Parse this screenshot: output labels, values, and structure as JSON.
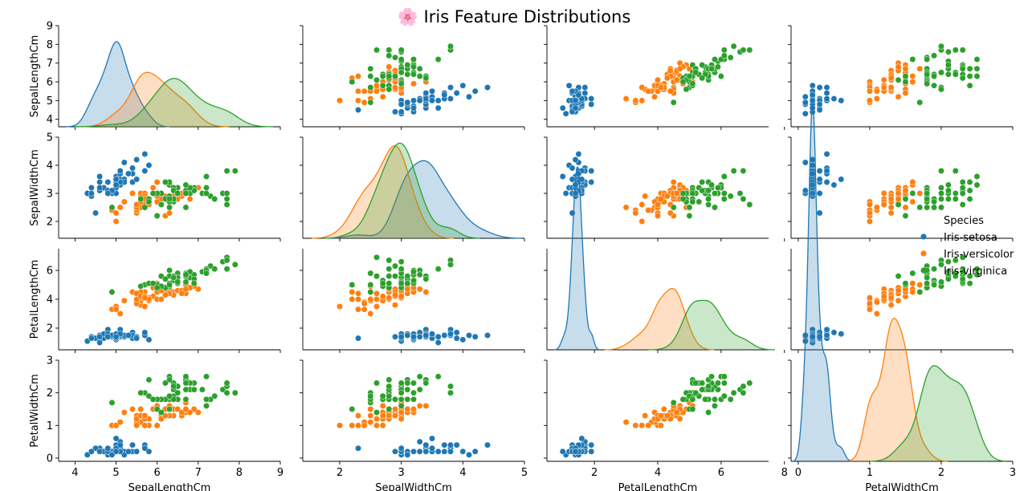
{
  "chart_data": {
    "type": "scatter",
    "title": "🌸 Iris Feature Distributions",
    "features": [
      "SepalLengthCm",
      "SepalWidthCm",
      "PetalLengthCm",
      "PetalWidthCm"
    ],
    "ranges": [
      [
        3.6,
        9.0
      ],
      [
        1.4,
        5.0
      ],
      [
        0.5,
        7.5
      ],
      [
        -0.1,
        3.0
      ]
    ],
    "ticks": [
      [
        4,
        5,
        6,
        7,
        8,
        9
      ],
      [
        2,
        3,
        4,
        5
      ],
      [
        2,
        4,
        6,
        8
      ],
      [
        0,
        1,
        2,
        3
      ]
    ],
    "diag_ylim": [
      0,
      1.3
    ],
    "legend": {
      "title": "Species",
      "placement": "center-right",
      "entries": [
        "Iris-setosa",
        "Iris-versicolor",
        "Iris-virginica"
      ]
    },
    "colors": [
      "#1f77b4",
      "#ff7f0e",
      "#2ca02c"
    ],
    "series": [
      {
        "name": "Iris-setosa",
        "SepalLengthCm": [
          5.1,
          4.9,
          4.7,
          4.6,
          5.0,
          5.4,
          4.6,
          5.0,
          4.4,
          4.9,
          5.4,
          4.8,
          4.8,
          4.3,
          5.8,
          5.7,
          5.4,
          5.1,
          5.7,
          5.1,
          5.4,
          5.1,
          4.6,
          5.1,
          4.8,
          5.0,
          5.0,
          5.2,
          5.2,
          4.7,
          4.8,
          5.4,
          5.2,
          5.5,
          4.9,
          5.0,
          5.5,
          4.9,
          4.4,
          5.1,
          5.0,
          4.5,
          4.4,
          5.0,
          5.1,
          4.8,
          5.1,
          4.6,
          5.3,
          5.0
        ],
        "SepalWidthCm": [
          3.5,
          3.0,
          3.2,
          3.1,
          3.6,
          3.9,
          3.4,
          3.4,
          2.9,
          3.1,
          3.7,
          3.4,
          3.0,
          3.0,
          4.0,
          4.4,
          3.9,
          3.5,
          3.8,
          3.8,
          3.4,
          3.7,
          3.6,
          3.3,
          3.4,
          3.0,
          3.4,
          3.5,
          3.4,
          3.2,
          3.1,
          3.4,
          4.1,
          4.2,
          3.1,
          3.2,
          3.5,
          3.1,
          3.0,
          3.4,
          3.5,
          2.3,
          3.2,
          3.5,
          3.8,
          3.0,
          3.8,
          3.2,
          3.7,
          3.3
        ],
        "PetalLengthCm": [
          1.4,
          1.4,
          1.3,
          1.5,
          1.4,
          1.7,
          1.4,
          1.5,
          1.4,
          1.5,
          1.5,
          1.6,
          1.4,
          1.1,
          1.2,
          1.5,
          1.3,
          1.4,
          1.7,
          1.5,
          1.7,
          1.5,
          1.0,
          1.7,
          1.9,
          1.6,
          1.6,
          1.5,
          1.4,
          1.6,
          1.6,
          1.5,
          1.5,
          1.4,
          1.5,
          1.2,
          1.3,
          1.5,
          1.3,
          1.5,
          1.3,
          1.3,
          1.3,
          1.6,
          1.9,
          1.4,
          1.6,
          1.4,
          1.5,
          1.4
        ],
        "PetalWidthCm": [
          0.2,
          0.2,
          0.2,
          0.2,
          0.2,
          0.4,
          0.3,
          0.2,
          0.2,
          0.1,
          0.2,
          0.2,
          0.1,
          0.1,
          0.2,
          0.4,
          0.4,
          0.3,
          0.3,
          0.3,
          0.2,
          0.4,
          0.2,
          0.5,
          0.2,
          0.2,
          0.4,
          0.2,
          0.2,
          0.2,
          0.2,
          0.4,
          0.1,
          0.2,
          0.1,
          0.2,
          0.2,
          0.1,
          0.2,
          0.2,
          0.3,
          0.3,
          0.2,
          0.6,
          0.4,
          0.3,
          0.2,
          0.2,
          0.2,
          0.2
        ]
      },
      {
        "name": "Iris-versicolor",
        "SepalLengthCm": [
          7.0,
          6.4,
          6.9,
          5.5,
          6.5,
          5.7,
          6.3,
          4.9,
          6.6,
          5.2,
          5.0,
          5.9,
          6.0,
          6.1,
          5.6,
          6.7,
          5.6,
          5.8,
          6.2,
          5.6,
          5.9,
          6.1,
          6.3,
          6.1,
          6.4,
          6.6,
          6.8,
          6.7,
          6.0,
          5.7,
          5.5,
          5.5,
          5.8,
          6.0,
          5.4,
          6.0,
          6.7,
          6.3,
          5.6,
          5.5,
          5.5,
          6.1,
          5.8,
          5.0,
          5.6,
          5.7,
          5.7,
          6.2,
          5.1,
          5.7
        ],
        "SepalWidthCm": [
          3.2,
          3.2,
          3.1,
          2.3,
          2.8,
          2.8,
          3.3,
          2.4,
          2.9,
          2.7,
          2.0,
          3.0,
          2.2,
          2.9,
          2.9,
          3.1,
          3.0,
          2.7,
          2.2,
          2.5,
          3.2,
          2.8,
          2.5,
          2.8,
          2.9,
          3.0,
          2.8,
          3.0,
          2.9,
          2.6,
          2.4,
          2.4,
          2.7,
          2.7,
          3.0,
          3.4,
          3.1,
          2.3,
          3.0,
          2.5,
          2.6,
          3.0,
          2.6,
          2.3,
          2.7,
          3.0,
          2.9,
          2.9,
          2.5,
          2.8
        ],
        "PetalLengthCm": [
          4.7,
          4.5,
          4.9,
          4.0,
          4.6,
          4.5,
          4.7,
          3.3,
          4.6,
          3.9,
          3.5,
          4.2,
          4.0,
          4.7,
          3.6,
          4.4,
          4.5,
          4.1,
          4.5,
          3.9,
          4.8,
          4.0,
          4.9,
          4.7,
          4.3,
          4.4,
          4.8,
          5.0,
          4.5,
          3.5,
          3.8,
          3.7,
          3.9,
          5.1,
          4.5,
          4.5,
          4.7,
          4.4,
          4.1,
          4.0,
          4.4,
          4.6,
          4.0,
          3.3,
          4.2,
          4.2,
          4.2,
          4.3,
          3.0,
          4.1
        ],
        "PetalWidthCm": [
          1.4,
          1.5,
          1.5,
          1.3,
          1.5,
          1.3,
          1.6,
          1.0,
          1.3,
          1.4,
          1.0,
          1.5,
          1.0,
          1.4,
          1.3,
          1.4,
          1.5,
          1.0,
          1.5,
          1.1,
          1.8,
          1.3,
          1.5,
          1.2,
          1.3,
          1.4,
          1.4,
          1.7,
          1.5,
          1.0,
          1.1,
          1.0,
          1.2,
          1.6,
          1.5,
          1.6,
          1.5,
          1.3,
          1.3,
          1.3,
          1.2,
          1.4,
          1.2,
          1.0,
          1.3,
          1.2,
          1.3,
          1.3,
          1.1,
          1.3
        ]
      },
      {
        "name": "Iris-virginica",
        "SepalLengthCm": [
          6.3,
          5.8,
          7.1,
          6.3,
          6.5,
          7.6,
          4.9,
          7.3,
          6.7,
          7.2,
          6.5,
          6.4,
          6.8,
          5.7,
          5.8,
          6.4,
          6.5,
          7.7,
          7.7,
          6.0,
          6.9,
          5.6,
          7.7,
          6.3,
          6.7,
          7.2,
          6.2,
          6.1,
          6.4,
          7.2,
          7.4,
          7.9,
          6.4,
          6.3,
          6.1,
          7.7,
          6.3,
          6.4,
          6.0,
          6.9,
          6.7,
          6.9,
          5.8,
          6.8,
          6.7,
          6.7,
          6.3,
          6.5,
          6.2,
          5.9
        ],
        "SepalWidthCm": [
          3.3,
          2.7,
          3.0,
          2.9,
          3.0,
          3.0,
          2.5,
          2.9,
          2.5,
          3.6,
          3.2,
          2.7,
          3.0,
          2.5,
          2.8,
          3.2,
          3.0,
          3.8,
          2.6,
          2.2,
          3.2,
          2.8,
          2.8,
          2.7,
          3.3,
          3.2,
          2.8,
          3.0,
          2.8,
          3.0,
          2.8,
          3.8,
          2.8,
          2.8,
          2.6,
          3.0,
          3.4,
          3.1,
          3.0,
          3.1,
          3.1,
          3.1,
          2.7,
          3.2,
          3.3,
          3.0,
          2.5,
          3.0,
          3.4,
          3.0
        ],
        "PetalLengthCm": [
          6.0,
          5.1,
          5.9,
          5.6,
          5.8,
          6.6,
          4.5,
          6.3,
          5.8,
          6.1,
          5.1,
          5.3,
          5.5,
          5.0,
          5.1,
          5.3,
          5.5,
          6.7,
          6.9,
          5.0,
          5.7,
          4.9,
          6.7,
          4.9,
          5.7,
          6.0,
          4.8,
          4.9,
          5.6,
          5.8,
          6.1,
          6.4,
          5.6,
          5.1,
          5.6,
          6.1,
          5.6,
          5.5,
          4.8,
          5.4,
          5.6,
          5.1,
          5.1,
          5.9,
          5.7,
          5.2,
          5.0,
          5.2,
          5.4,
          5.1
        ],
        "PetalWidthCm": [
          2.5,
          1.9,
          2.1,
          1.8,
          2.2,
          2.1,
          1.7,
          1.8,
          1.8,
          2.5,
          2.0,
          1.9,
          2.1,
          2.0,
          2.4,
          2.3,
          1.8,
          2.2,
          2.3,
          1.5,
          2.3,
          2.0,
          2.0,
          1.8,
          2.1,
          1.8,
          1.8,
          1.8,
          2.1,
          1.6,
          1.9,
          2.0,
          2.2,
          1.5,
          1.4,
          2.3,
          2.4,
          1.8,
          1.8,
          2.1,
          2.4,
          2.3,
          1.9,
          2.3,
          2.5,
          2.3,
          1.9,
          2.0,
          2.3,
          1.8
        ]
      }
    ]
  }
}
